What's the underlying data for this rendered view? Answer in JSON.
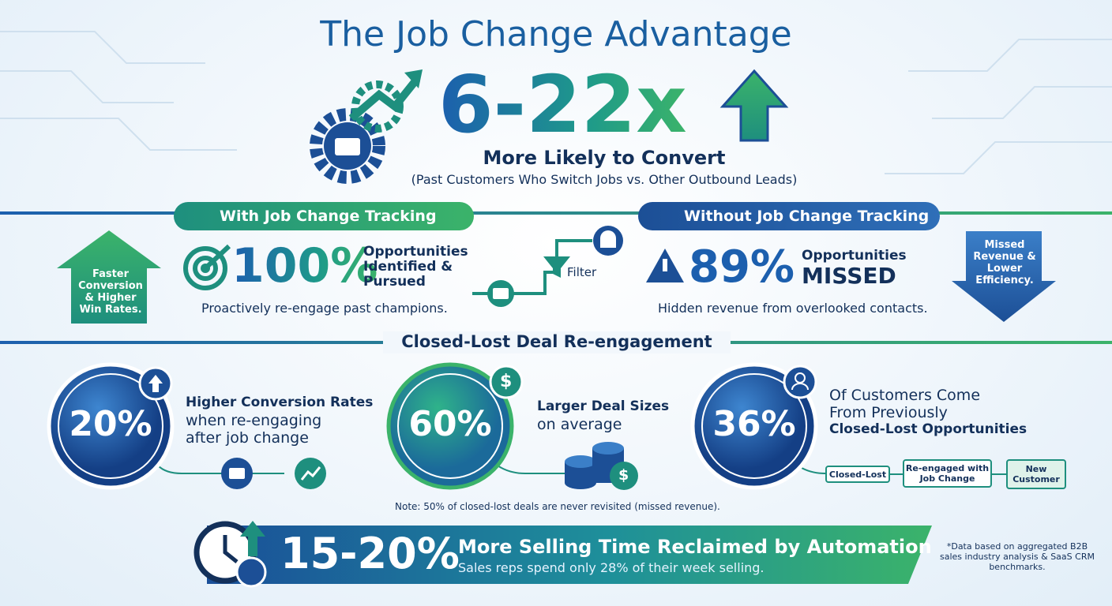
{
  "title": "The Job Change Advantage",
  "hero": {
    "stat": "6-22x",
    "headline": "More Likely to Convert",
    "subtitle": "(Past Customers Who Switch Jobs vs. Other Outbound Leads)"
  },
  "with_tracking": {
    "heading": "With Job Change Tracking",
    "arrow_label": "Faster Conversion & Higher Win Rates.",
    "stat": "100%",
    "stat_label": "Opportunities Identified & Pursued",
    "note": "Proactively re-engage past champions."
  },
  "filter_label": "Filter",
  "without_tracking": {
    "heading": "Without Job Change Tracking",
    "stat": "89%",
    "stat_label": "Opportunities",
    "stat_emphasis": "MISSED",
    "note": "Hidden revenue from overlooked contacts.",
    "arrow_label": "Missed Revenue & Lower Efficiency."
  },
  "closed_lost": {
    "heading": "Closed-Lost Deal Re-engagement",
    "cards": [
      {
        "stat": "20%",
        "lines": [
          "Higher Conversion Rates",
          "when re-engaging",
          "after job change"
        ]
      },
      {
        "stat": "60%",
        "lines": [
          "Larger Deal Sizes",
          "on average"
        ]
      },
      {
        "stat": "36%",
        "lines": [
          "Of Customers Come",
          "From Previously",
          "Closed-Lost Opportunities"
        ]
      }
    ],
    "flow": [
      "Closed-Lost",
      "Re-engaged with Job Change",
      "New Customer"
    ],
    "note": "Note: 50% of closed-lost deals are never revisited (missed revenue)."
  },
  "banner": {
    "stat": "15-20%",
    "headline": "More Selling Time Reclaimed by Automation",
    "subtitle": "Sales reps spend only 28% of their week selling."
  },
  "footnote": "*Data based on aggregated B2B sales industry analysis & SaaS CRM benchmarks."
}
